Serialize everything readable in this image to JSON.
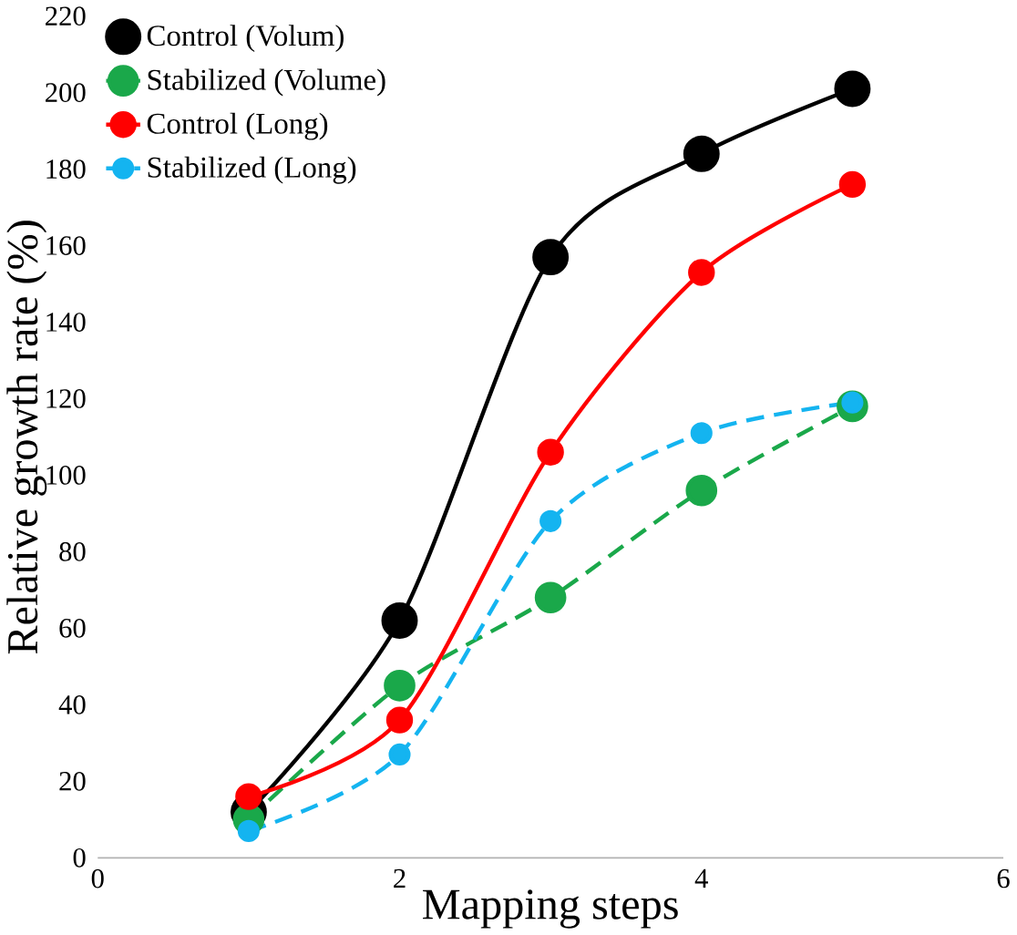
{
  "chart_data": {
    "type": "line",
    "xlabel": "Mapping steps",
    "ylabel": "Relative growth rate (%)",
    "x": [
      1,
      2,
      3,
      4,
      5
    ],
    "xlim": [
      0,
      6
    ],
    "xticks": [
      0,
      2,
      4,
      6
    ],
    "ylim": [
      0,
      220
    ],
    "yticks": [
      0,
      20,
      40,
      60,
      80,
      100,
      120,
      140,
      160,
      180,
      200,
      220
    ],
    "grid": false,
    "legend": "top left",
    "marker": "circle",
    "series": [
      {
        "name": "Control (Volum)",
        "color": "#000000",
        "line_style": "solid",
        "values": [
          12,
          62,
          157,
          184,
          201
        ]
      },
      {
        "name": "Stabilized (Volume)",
        "color": "#1aa84a",
        "line_style": "dashed",
        "values": [
          10,
          45,
          68,
          96,
          118
        ]
      },
      {
        "name": "Control (Long)",
        "color": "#ff0000",
        "line_style": "solid",
        "values": [
          16,
          36,
          106,
          153,
          176
        ]
      },
      {
        "name": "Stabilized (Long)",
        "color": "#14b4f0",
        "line_style": "dashed",
        "values": [
          7,
          27,
          88,
          111,
          119
        ]
      }
    ]
  }
}
